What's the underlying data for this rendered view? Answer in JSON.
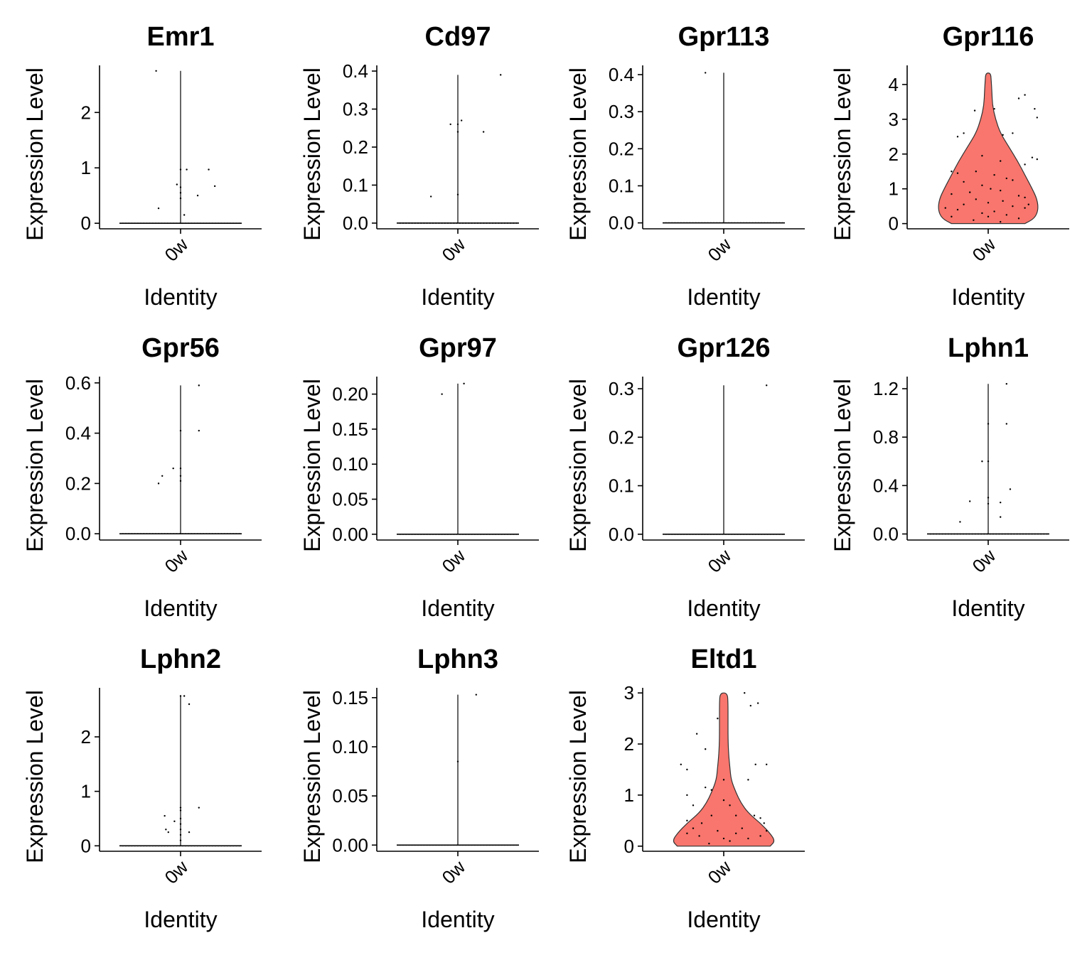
{
  "chart_data": [
    {
      "type": "violin",
      "title": "Emr1",
      "xlabel": "Identity",
      "ylabel": "Expression Level",
      "categories": [
        "0w"
      ],
      "ylim": [
        -0.1,
        2.85
      ],
      "yticks": [
        "0",
        "1",
        "2"
      ],
      "ytick_values": [
        0,
        1,
        2
      ],
      "violin_max": 2.75,
      "fill": false,
      "points": [
        [
          -0.2,
          2.75
        ],
        [
          -0.18,
          0.27
        ],
        [
          0.0,
          0.97
        ],
        [
          0.05,
          0.97
        ],
        [
          -0.03,
          0.7
        ],
        [
          0.0,
          0.65
        ],
        [
          0.0,
          0.55
        ],
        [
          0.23,
          0.97
        ],
        [
          0.14,
          0.5
        ],
        [
          0.28,
          0.67
        ],
        [
          0.0,
          0.45
        ],
        [
          0.03,
          0.15
        ]
      ]
    },
    {
      "type": "violin",
      "title": "Cd97",
      "xlabel": "Identity",
      "ylabel": "Expression Level",
      "categories": [
        "0w"
      ],
      "ylim": [
        -0.015,
        0.415
      ],
      "yticks": [
        "0.0",
        "0.1",
        "0.2",
        "0.3",
        "0.4"
      ],
      "ytick_values": [
        0,
        0.1,
        0.2,
        0.3,
        0.4
      ],
      "violin_max": 0.39,
      "fill": false,
      "points": [
        [
          -0.22,
          0.07
        ],
        [
          -0.06,
          0.26
        ],
        [
          0.0,
          0.26
        ],
        [
          0.03,
          0.27
        ],
        [
          0.0,
          0.24
        ],
        [
          0.0,
          0.075
        ],
        [
          0.21,
          0.24
        ],
        [
          0.35,
          0.39
        ]
      ]
    },
    {
      "type": "violin",
      "title": "Gpr113",
      "xlabel": "Identity",
      "ylabel": "Expression Level",
      "categories": [
        "0w"
      ],
      "ylim": [
        -0.016,
        0.425
      ],
      "yticks": [
        "0.0",
        "0.1",
        "0.2",
        "0.3",
        "0.4"
      ],
      "ytick_values": [
        0,
        0.1,
        0.2,
        0.3,
        0.4
      ],
      "violin_max": 0.405,
      "fill": false,
      "points": [
        [
          -0.15,
          0.405
        ]
      ]
    },
    {
      "type": "violin",
      "title": "Gpr116",
      "xlabel": "Identity",
      "ylabel": "Expression Level",
      "categories": [
        "0w"
      ],
      "ylim": [
        -0.15,
        4.55
      ],
      "yticks": [
        "0",
        "1",
        "2",
        "3",
        "4"
      ],
      "ytick_values": [
        0,
        1,
        2,
        3,
        4
      ],
      "violin_max": 4.33,
      "fill": true,
      "color": "#F8766D",
      "violin_profile": [
        [
          0,
          0.3
        ],
        [
          0.15,
          0.38
        ],
        [
          0.4,
          0.41
        ],
        [
          0.7,
          0.4
        ],
        [
          1,
          0.36
        ],
        [
          1.4,
          0.3
        ],
        [
          1.8,
          0.24
        ],
        [
          2.2,
          0.17
        ],
        [
          2.6,
          0.1
        ],
        [
          3.0,
          0.06
        ],
        [
          3.4,
          0.035
        ],
        [
          3.8,
          0.03
        ],
        [
          4.1,
          0.025
        ],
        [
          4.33,
          0.02
        ]
      ],
      "points": [
        [
          0.05,
          3.3
        ],
        [
          -0.11,
          3.25
        ],
        [
          0.3,
          3.7
        ],
        [
          0.25,
          3.6
        ],
        [
          0.38,
          3.3
        ],
        [
          0.4,
          3.05
        ],
        [
          0.2,
          2.6
        ],
        [
          0.12,
          2.55
        ],
        [
          -0.2,
          2.6
        ],
        [
          -0.25,
          2.5
        ],
        [
          0.36,
          1.9
        ],
        [
          0.4,
          1.85
        ],
        [
          -0.05,
          1.95
        ],
        [
          0.1,
          1.8
        ],
        [
          0.3,
          1.7
        ],
        [
          -0.3,
          1.5
        ],
        [
          -0.25,
          1.45
        ],
        [
          -0.1,
          1.5
        ],
        [
          0.05,
          1.4
        ],
        [
          0.15,
          1.3
        ],
        [
          0.2,
          1.25
        ],
        [
          -0.2,
          1.2
        ],
        [
          -0.05,
          1.1
        ],
        [
          0.02,
          1.0
        ],
        [
          0.1,
          0.95
        ],
        [
          -0.15,
          0.9
        ],
        [
          -0.3,
          0.85
        ],
        [
          0.25,
          0.8
        ],
        [
          0.3,
          0.75
        ],
        [
          -0.1,
          0.7
        ],
        [
          0.12,
          0.65
        ],
        [
          0.0,
          0.6
        ],
        [
          -0.2,
          0.55
        ],
        [
          0.2,
          0.5
        ],
        [
          0.3,
          0.45
        ],
        [
          -0.25,
          0.4
        ],
        [
          0.05,
          0.35
        ],
        [
          -0.05,
          0.3
        ],
        [
          0.15,
          0.25
        ],
        [
          -0.3,
          0.2
        ],
        [
          0.25,
          0.15
        ],
        [
          -0.12,
          0.1
        ],
        [
          0.1,
          0.05
        ],
        [
          0.33,
          0.55
        ],
        [
          -0.35,
          0.45
        ],
        [
          0.0,
          0.2
        ]
      ]
    },
    {
      "type": "violin",
      "title": "Gpr56",
      "xlabel": "Identity",
      "ylabel": "Expression Level",
      "categories": [
        "0w"
      ],
      "ylim": [
        -0.025,
        0.625
      ],
      "yticks": [
        "0.0",
        "0.2",
        "0.4",
        "0.6"
      ],
      "ytick_values": [
        0,
        0.2,
        0.4,
        0.6
      ],
      "violin_max": 0.59,
      "fill": false,
      "points": [
        [
          -0.18,
          0.2
        ],
        [
          -0.15,
          0.23
        ],
        [
          -0.06,
          0.26
        ],
        [
          0.0,
          0.26
        ],
        [
          0.0,
          0.21
        ],
        [
          0.0,
          0.41
        ],
        [
          0.0,
          0.23
        ],
        [
          0.15,
          0.41
        ],
        [
          0.15,
          0.59
        ]
      ]
    },
    {
      "type": "violin",
      "title": "Gpr97",
      "xlabel": "Identity",
      "ylabel": "Expression Level",
      "categories": [
        "0w"
      ],
      "ylim": [
        -0.0083,
        0.225
      ],
      "yticks": [
        "0.00",
        "0.05",
        "0.10",
        "0.15",
        "0.20"
      ],
      "ytick_values": [
        0,
        0.05,
        0.1,
        0.15,
        0.2
      ],
      "violin_max": 0.215,
      "fill": false,
      "points": [
        [
          -0.13,
          0.2
        ],
        [
          0.05,
          0.215
        ]
      ]
    },
    {
      "type": "violin",
      "title": "Gpr126",
      "xlabel": "Identity",
      "ylabel": "Expression Level",
      "categories": [
        "0w"
      ],
      "ylim": [
        -0.012,
        0.325
      ],
      "yticks": [
        "0.0",
        "0.1",
        "0.2",
        "0.3"
      ],
      "ytick_values": [
        0,
        0.1,
        0.2,
        0.3
      ],
      "violin_max": 0.307,
      "fill": false,
      "points": [
        [
          0.35,
          0.307
        ]
      ]
    },
    {
      "type": "violin",
      "title": "Lphn1",
      "xlabel": "Identity",
      "ylabel": "Expression Level",
      "categories": [
        "0w"
      ],
      "ylim": [
        -0.05,
        1.3
      ],
      "yticks": [
        "0.0",
        "0.4",
        "0.8",
        "1.2"
      ],
      "ytick_values": [
        0,
        0.4,
        0.8,
        1.2
      ],
      "violin_max": 1.24,
      "fill": false,
      "points": [
        [
          -0.23,
          0.1
        ],
        [
          -0.15,
          0.27
        ],
        [
          -0.05,
          0.6
        ],
        [
          0.0,
          0.6
        ],
        [
          0.0,
          0.91
        ],
        [
          0.0,
          0.25
        ],
        [
          0.0,
          0.3
        ],
        [
          0.1,
          0.14
        ],
        [
          0.1,
          0.26
        ],
        [
          0.15,
          0.91
        ],
        [
          0.18,
          0.37
        ],
        [
          0.15,
          1.24
        ]
      ]
    },
    {
      "type": "violin",
      "title": "Lphn2",
      "xlabel": "Identity",
      "ylabel": "Expression Level",
      "categories": [
        "0w"
      ],
      "ylim": [
        -0.1,
        2.9
      ],
      "yticks": [
        "0",
        "1",
        "2"
      ],
      "ytick_values": [
        0,
        1,
        2
      ],
      "violin_max": 2.75,
      "fill": false,
      "points": [
        [
          -0.13,
          0.55
        ],
        [
          -0.12,
          0.3
        ],
        [
          -0.1,
          0.25
        ],
        [
          -0.05,
          0.45
        ],
        [
          0.0,
          2.75
        ],
        [
          0.03,
          2.75
        ],
        [
          0.0,
          0.7
        ],
        [
          0.0,
          0.65
        ],
        [
          0.0,
          0.5
        ],
        [
          0.0,
          0.4
        ],
        [
          0.0,
          0.3
        ],
        [
          0.0,
          0.2
        ],
        [
          0.0,
          0.1
        ],
        [
          0.07,
          2.6
        ],
        [
          0.07,
          0.25
        ],
        [
          0.15,
          0.7
        ]
      ]
    },
    {
      "type": "violin",
      "title": "Lphn3",
      "xlabel": "Identity",
      "ylabel": "Expression Level",
      "categories": [
        "0w"
      ],
      "ylim": [
        -0.0063,
        0.16
      ],
      "yticks": [
        "0.00",
        "0.05",
        "0.10",
        "0.15"
      ],
      "ytick_values": [
        0,
        0.05,
        0.1,
        0.15
      ],
      "violin_max": 0.153,
      "fill": false,
      "points": [
        [
          0.0,
          0.085
        ],
        [
          0.15,
          0.153
        ]
      ]
    },
    {
      "type": "violin",
      "title": "Eltd1",
      "xlabel": "Identity",
      "ylabel": "Expression Level",
      "categories": [
        "0w"
      ],
      "ylim": [
        -0.1,
        3.1
      ],
      "yticks": [
        "0",
        "1",
        "2",
        "3"
      ],
      "ytick_values": [
        0,
        1,
        2,
        3
      ],
      "violin_max": 3.0,
      "fill": true,
      "color": "#F8766D",
      "violin_profile": [
        [
          0,
          0.38
        ],
        [
          0.1,
          0.42
        ],
        [
          0.25,
          0.38
        ],
        [
          0.45,
          0.3
        ],
        [
          0.65,
          0.2
        ],
        [
          0.85,
          0.14
        ],
        [
          1.05,
          0.1
        ],
        [
          1.3,
          0.06
        ],
        [
          1.55,
          0.05
        ],
        [
          1.8,
          0.04
        ],
        [
          2.1,
          0.035
        ],
        [
          2.5,
          0.035
        ],
        [
          2.8,
          0.035
        ],
        [
          3.0,
          0.03
        ]
      ],
      "points": [
        [
          -0.35,
          1.6
        ],
        [
          -0.3,
          1.5
        ],
        [
          -0.22,
          2.2
        ],
        [
          -0.15,
          1.9
        ],
        [
          -0.1,
          1.1
        ],
        [
          -0.05,
          2.5
        ],
        [
          0.17,
          3.0
        ],
        [
          0.22,
          2.75
        ],
        [
          0.28,
          2.8
        ],
        [
          0.26,
          1.6
        ],
        [
          0.35,
          1.6
        ],
        [
          0.2,
          1.3
        ],
        [
          -0.3,
          1.0
        ],
        [
          -0.15,
          1.15
        ],
        [
          -0.25,
          0.8
        ],
        [
          0.05,
          0.8
        ],
        [
          -0.1,
          0.6
        ],
        [
          0.1,
          0.6
        ],
        [
          0.25,
          0.6
        ],
        [
          0.3,
          0.55
        ],
        [
          0.33,
          0.45
        ],
        [
          -0.3,
          0.5
        ],
        [
          0.0,
          1.3
        ],
        [
          0.0,
          0.9
        ],
        [
          -0.18,
          0.45
        ],
        [
          0.15,
          0.35
        ],
        [
          -0.05,
          0.3
        ],
        [
          0.1,
          0.25
        ],
        [
          -0.2,
          0.2
        ],
        [
          0.2,
          0.15
        ],
        [
          0.3,
          0.2
        ],
        [
          -0.3,
          0.25
        ],
        [
          0.0,
          0.15
        ],
        [
          0.05,
          0.1
        ],
        [
          -0.12,
          0.05
        ],
        [
          0.35,
          0.3
        ],
        [
          -0.25,
          0.35
        ]
      ]
    }
  ]
}
